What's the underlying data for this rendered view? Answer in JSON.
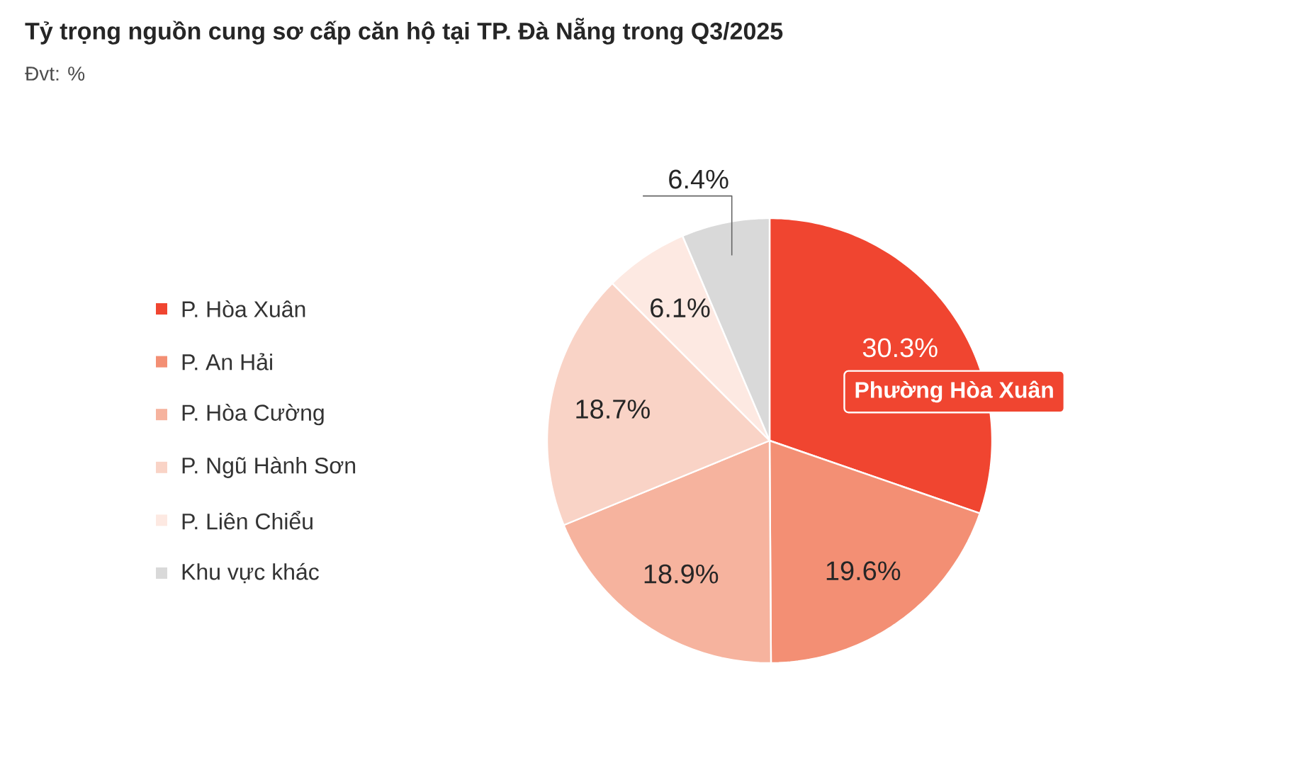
{
  "chart_data": {
    "type": "pie",
    "title": "Tỷ trọng nguồn cung sơ cấp căn hộ tại TP. Đà Nẵng trong Q3/2025",
    "subtitle": "Đvt: %",
    "categories": [
      "P. Hòa Xuân",
      "P. An Hải",
      "P. Hòa Cường",
      "P. Ngũ Hành Sơn",
      "P. Liên Chiểu",
      "Khu vực khác"
    ],
    "values": [
      30.3,
      19.6,
      18.9,
      18.7,
      6.1,
      6.4
    ],
    "colors": [
      "#f04530",
      "#f38f74",
      "#f6b39e",
      "#f9d3c6",
      "#fde9e2",
      "#d9d9d9"
    ],
    "value_labels": [
      "30.3%",
      "19.6%",
      "18.9%",
      "18.7%",
      "6.1%",
      "6.4%"
    ],
    "legend": "left",
    "annotations": [
      "Phường Hòa Xuân"
    ]
  }
}
